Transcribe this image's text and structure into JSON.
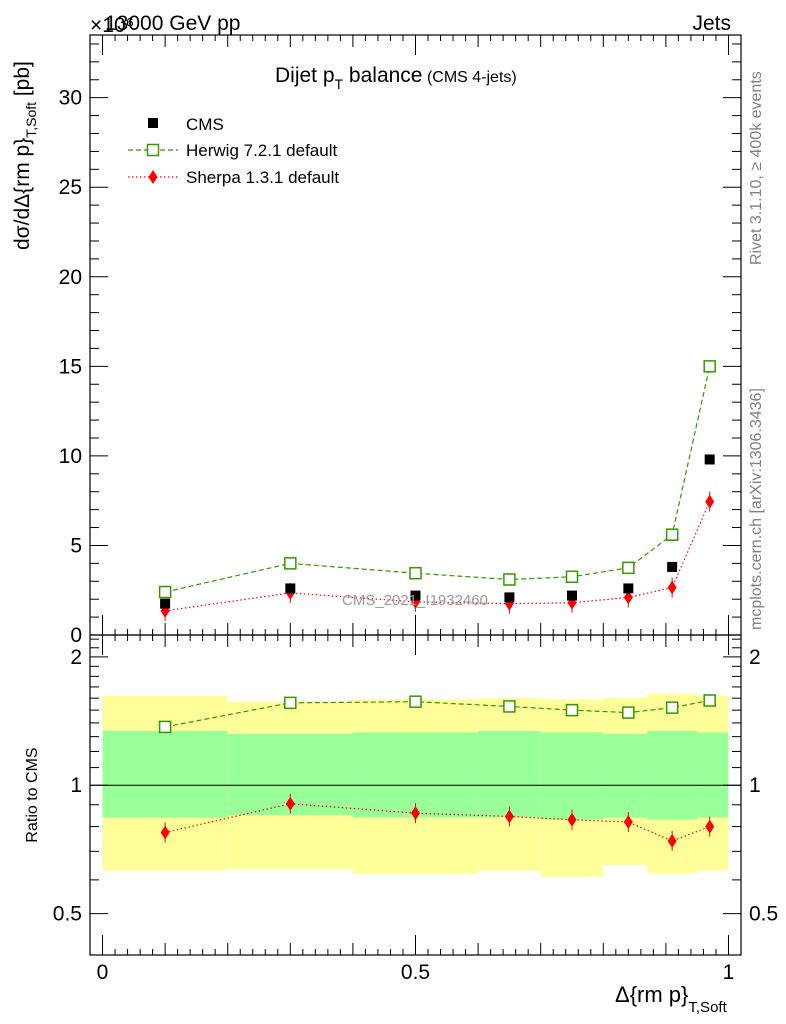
{
  "header": {
    "energy_label": "13000 GeV pp",
    "process_label": "Jets",
    "exponent_label": "×10⁶"
  },
  "side_labels": {
    "rivet": "Rivet 3.1.10, ≥ 400k events",
    "mcplots": "mcplots.cern.ch [arXiv:1306.3436]"
  },
  "watermark": "CMS_2021_I1932460",
  "chart_data": [
    {
      "type": "scatter",
      "title_main": "Dijet p",
      "title_sub": "T",
      "title_rest": " balance",
      "title_note": " (CMS 4-jets)",
      "ylabel_main": "dσ/dΔ{rm p}",
      "ylabel_sub": "T,Soft",
      "ylabel_unit": "  [pb]",
      "xlabel_main": "Δ{rm p}",
      "xlabel_sub": "T,Soft",
      "xlim": [
        -0.02,
        1.02
      ],
      "ylim": [
        0,
        33.5
      ],
      "yticks": [
        0,
        5,
        10,
        15,
        20,
        25,
        30
      ],
      "ytick_labels": [
        "0",
        "5",
        "10",
        "15",
        "20",
        "25",
        "30"
      ],
      "legend_placement": "top-left",
      "series": [
        {
          "name": "CMS",
          "color": "#000000",
          "marker": "filled-square",
          "x": [
            0.1,
            0.3,
            0.5,
            0.65,
            0.75,
            0.84,
            0.91,
            0.97
          ],
          "y": [
            1.75,
            2.6,
            2.2,
            2.1,
            2.2,
            2.6,
            3.8,
            9.8
          ]
        },
        {
          "name": "Herwig 7.2.1 default",
          "color": "#339900",
          "marker": "open-square",
          "line": "dashed",
          "x": [
            0.1,
            0.3,
            0.5,
            0.65,
            0.75,
            0.84,
            0.91,
            0.97
          ],
          "y": [
            2.4,
            4.0,
            3.45,
            3.1,
            3.25,
            3.75,
            5.6,
            15.0
          ]
        },
        {
          "name": "Sherpa 1.3.1 default",
          "color": "#ff0000",
          "marker": "filled-diamond",
          "line": "dotted",
          "x": [
            0.1,
            0.3,
            0.5,
            0.65,
            0.75,
            0.84,
            0.91,
            0.97
          ],
          "y": [
            1.35,
            2.35,
            1.85,
            1.75,
            1.8,
            2.1,
            2.65,
            7.45
          ]
        }
      ]
    },
    {
      "type": "scatter",
      "ylabel": "Ratio to CMS",
      "xlim": [
        -0.02,
        1.02
      ],
      "ylim": [
        0.4,
        2.25
      ],
      "log_y": true,
      "yticks": [
        0.5,
        1,
        2
      ],
      "ytick_labels": [
        "0.5",
        "1",
        "2"
      ],
      "xticks": [
        0,
        0.5,
        1
      ],
      "xtick_labels": [
        "0",
        "0.5",
        "1"
      ],
      "bands": {
        "x_edges": [
          0.0,
          0.2,
          0.4,
          0.6,
          0.7,
          0.8,
          0.87,
          0.95,
          1.0
        ],
        "yellow_low": [
          0.63,
          0.635,
          0.62,
          0.63,
          0.61,
          0.65,
          0.62,
          0.63
        ],
        "yellow_high": [
          1.62,
          1.57,
          1.59,
          1.6,
          1.59,
          1.6,
          1.64,
          1.62
        ],
        "green_low": [
          0.84,
          0.85,
          0.84,
          0.84,
          0.83,
          0.84,
          0.83,
          0.84
        ],
        "green_high": [
          1.34,
          1.32,
          1.33,
          1.34,
          1.33,
          1.32,
          1.34,
          1.33
        ]
      },
      "series": [
        {
          "name": "Herwig 7.2.1 default",
          "color": "#339900",
          "marker": "open-square",
          "line": "dashed",
          "x": [
            0.1,
            0.3,
            0.5,
            0.65,
            0.75,
            0.84,
            0.91,
            0.97
          ],
          "y": [
            1.37,
            1.56,
            1.57,
            1.53,
            1.5,
            1.48,
            1.52,
            1.58
          ]
        },
        {
          "name": "Sherpa 1.3.1 default",
          "color": "#ff0000",
          "marker": "filled-diamond",
          "line": "dotted",
          "x": [
            0.1,
            0.3,
            0.5,
            0.65,
            0.75,
            0.84,
            0.91,
            0.97
          ],
          "y": [
            0.775,
            0.905,
            0.86,
            0.845,
            0.83,
            0.82,
            0.74,
            0.8
          ]
        }
      ]
    }
  ]
}
